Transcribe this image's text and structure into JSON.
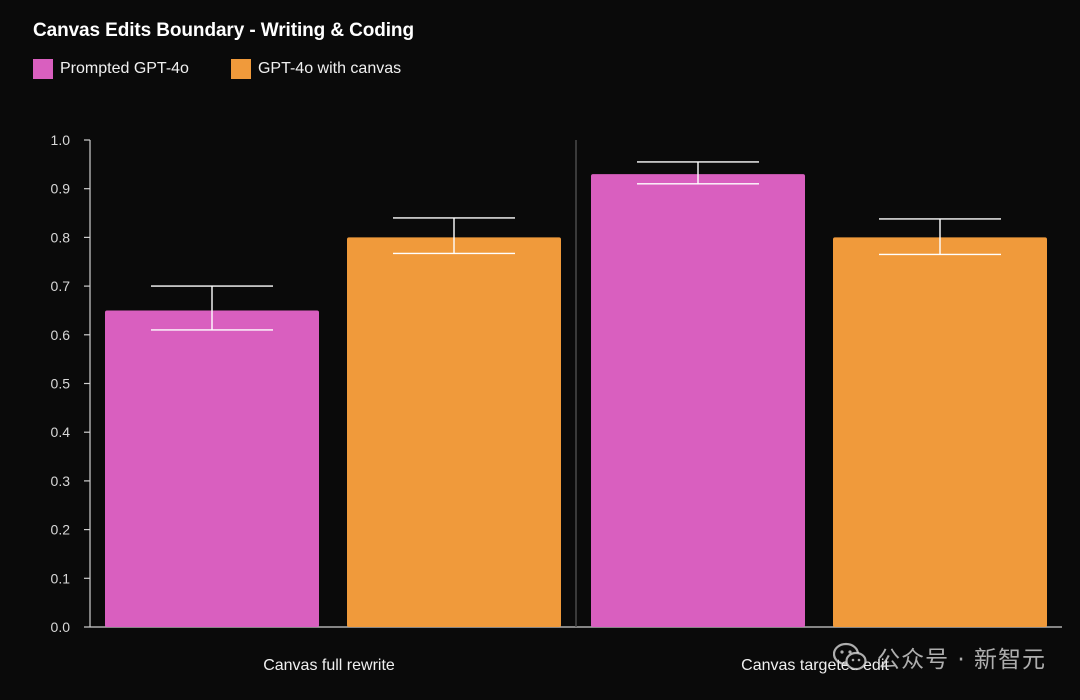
{
  "chart_data": {
    "type": "bar",
    "title": "Canvas Edits Boundary - Writing & Coding",
    "xlabel": "",
    "ylabel": "",
    "categories": [
      "Canvas full rewrite",
      "Canvas targeted edit"
    ],
    "series": [
      {
        "name": "Prompted GPT-4o",
        "color": "#d95fbf",
        "values": [
          0.65,
          0.93
        ],
        "error_low": [
          0.61,
          0.91
        ],
        "error_high": [
          0.7,
          0.955
        ]
      },
      {
        "name": "GPT-4o with canvas",
        "color": "#f09a3b",
        "values": [
          0.8,
          0.8
        ],
        "error_low": [
          0.767,
          0.765
        ],
        "error_high": [
          0.84,
          0.838
        ]
      }
    ],
    "ylim": [
      0,
      1.0
    ],
    "yticks": [
      "0.0",
      "0.1",
      "0.2",
      "0.3",
      "0.4",
      "0.5",
      "0.6",
      "0.7",
      "0.8",
      "0.9",
      "1.0"
    ],
    "grid": false,
    "legend_position": "top-left"
  },
  "watermark": {
    "text": "公众号 · 新智元",
    "icon": "wechat-icon"
  }
}
